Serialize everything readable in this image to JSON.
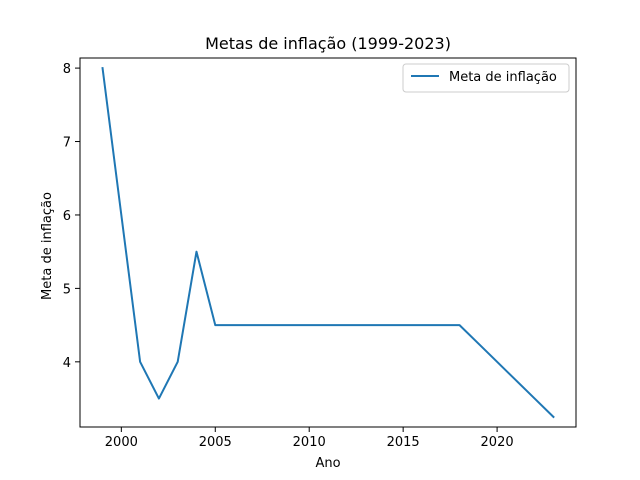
{
  "chart_data": {
    "type": "line",
    "title": "Metas de inflação (1999-2023)",
    "xlabel": "Ano",
    "ylabel": "Meta de inflação",
    "x": [
      1999,
      2000,
      2001,
      2002,
      2003,
      2004,
      2005,
      2006,
      2007,
      2008,
      2009,
      2010,
      2011,
      2012,
      2013,
      2014,
      2015,
      2016,
      2017,
      2018,
      2019,
      2020,
      2021,
      2022,
      2023
    ],
    "series": [
      {
        "name": "Meta de inflação",
        "color": "#1f77b4",
        "values": [
          8.0,
          6.0,
          4.0,
          3.5,
          4.0,
          5.5,
          4.5,
          4.5,
          4.5,
          4.5,
          4.5,
          4.5,
          4.5,
          4.5,
          4.5,
          4.5,
          4.5,
          4.5,
          4.5,
          4.5,
          4.25,
          4.0,
          3.75,
          3.5,
          3.25
        ]
      }
    ],
    "xlim": [
      1997.8,
      2024.2
    ],
    "ylim": [
      3.1125,
      8.1375
    ],
    "xticks": [
      2000,
      2005,
      2010,
      2015,
      2020
    ],
    "yticks": [
      4,
      5,
      6,
      7,
      8
    ],
    "grid": false,
    "legend": "top-right"
  }
}
